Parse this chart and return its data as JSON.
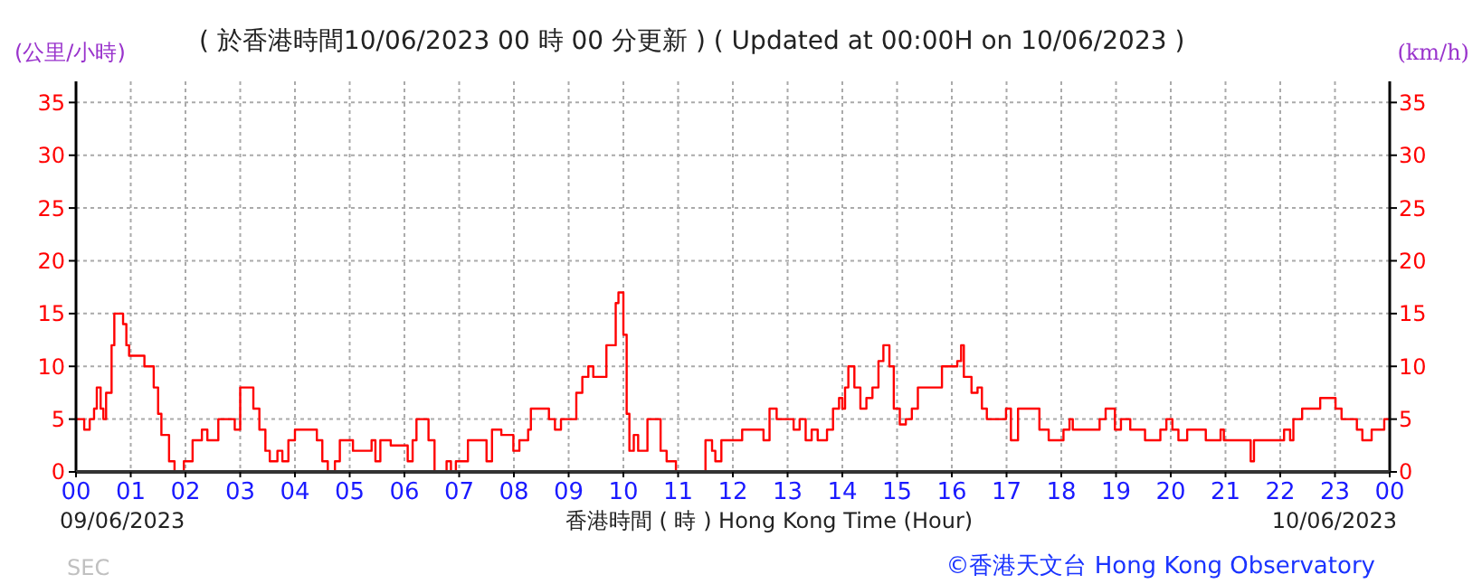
{
  "chart_data": {
    "type": "step",
    "title": "( 於香港時間10/06/2023 00 時 00 分更新 ) ( Updated at 00:00H on 10/06/2023 )",
    "xlabel": "香港時間 ( 時 ) Hong Kong Time (Hour)",
    "ylabel": "(公里/小時)",
    "y2label": "(km/h)",
    "annotations": [
      "09/06/2023",
      "10/06/2023",
      "SEC",
      "©香港天文台 Hong Kong Observatory"
    ],
    "xlim": [
      0,
      24
    ],
    "xticks": [
      {
        "value": 0,
        "label": "00"
      },
      {
        "value": 1,
        "label": "01"
      },
      {
        "value": 2,
        "label": "02"
      },
      {
        "value": 3,
        "label": "03"
      },
      {
        "value": 4,
        "label": "04"
      },
      {
        "value": 5,
        "label": "05"
      },
      {
        "value": 6,
        "label": "06"
      },
      {
        "value": 7,
        "label": "07"
      },
      {
        "value": 8,
        "label": "08"
      },
      {
        "value": 9,
        "label": "09"
      },
      {
        "value": 10,
        "label": "10"
      },
      {
        "value": 11,
        "label": "11"
      },
      {
        "value": 12,
        "label": "12"
      },
      {
        "value": 13,
        "label": "13"
      },
      {
        "value": 14,
        "label": "14"
      },
      {
        "value": 15,
        "label": "15"
      },
      {
        "value": 16,
        "label": "16"
      },
      {
        "value": 17,
        "label": "17"
      },
      {
        "value": 18,
        "label": "18"
      },
      {
        "value": 19,
        "label": "19"
      },
      {
        "value": 20,
        "label": "20"
      },
      {
        "value": 21,
        "label": "21"
      },
      {
        "value": 22,
        "label": "22"
      },
      {
        "value": 23,
        "label": "23"
      },
      {
        "value": 24,
        "label": "00"
      }
    ],
    "ylim": [
      0,
      37
    ],
    "yticks": [
      0,
      5,
      10,
      15,
      20,
      25,
      30,
      35
    ],
    "y2lim": [
      0,
      37
    ],
    "y2ticks": [
      0,
      5,
      10,
      15,
      20,
      25,
      30,
      35
    ],
    "grid": true,
    "series": [
      {
        "color": "#ff0000",
        "x": [
          0,
          0.15,
          0.25,
          0.33,
          0.38,
          0.45,
          0.5,
          0.55,
          0.65,
          0.7,
          0.86,
          0.92,
          0.97,
          1.25,
          1.3,
          1.42,
          1.5,
          1.56,
          1.7,
          1.8,
          1.97,
          2.13,
          2.3,
          2.4,
          2.6,
          2.9,
          3.0,
          3.24,
          3.35,
          3.46,
          3.54,
          3.68,
          3.77,
          3.88,
          4.0,
          4.4,
          4.5,
          4.6,
          4.73,
          4.82,
          5.06,
          5.4,
          5.47,
          5.56,
          5.75,
          6.06,
          6.15,
          6.22,
          6.44,
          6.55,
          6.77,
          6.85,
          6.94,
          7.16,
          7.5,
          7.6,
          7.77,
          7.99,
          8.1,
          8.26,
          8.31,
          8.64,
          8.75,
          8.86,
          9.14,
          9.25,
          9.36,
          9.45,
          9.69,
          9.86,
          9.91,
          10.0,
          10.06,
          10.11,
          10.19,
          10.27,
          10.36,
          10.44,
          10.6,
          10.68,
          10.79,
          10.96,
          11.5,
          11.62,
          11.68,
          11.79,
          12.17,
          12.56,
          12.67,
          12.8,
          13.11,
          13.22,
          13.33,
          13.44,
          13.55,
          13.72,
          13.83,
          13.94,
          14.0,
          14.05,
          14.11,
          14.22,
          14.33,
          14.44,
          14.55,
          14.66,
          14.75,
          14.86,
          14.94,
          15.05,
          15.16,
          15.27,
          15.38,
          15.82,
          16.1,
          16.17,
          16.22,
          16.36,
          16.47,
          16.55,
          16.64,
          16.99,
          17.08,
          17.21,
          17.6,
          17.77,
          18.04,
          18.15,
          18.21,
          18.7,
          18.81,
          18.98,
          19.09,
          19.26,
          19.53,
          19.81,
          19.92,
          20.03,
          20.14,
          20.3,
          20.64,
          20.91,
          20.97,
          21.46,
          21.52,
          22.07,
          22.18,
          22.24,
          22.4,
          22.73,
          23.01,
          23.12,
          23.4,
          23.5,
          23.67,
          23.9,
          23.97,
          24
        ],
        "values": [
          5,
          4,
          5,
          6,
          8,
          6,
          5,
          7.5,
          12,
          15,
          14,
          12,
          11,
          10,
          10,
          8,
          5.5,
          3.5,
          1,
          0,
          1,
          3,
          4,
          3,
          5,
          4,
          8,
          6,
          4,
          2,
          1,
          2,
          1,
          3,
          4,
          3,
          1,
          0,
          1,
          3,
          2,
          3,
          1,
          3,
          2.5,
          1,
          3,
          5,
          3,
          0,
          1,
          0,
          1,
          3,
          1,
          4,
          3.5,
          2,
          3,
          4,
          6,
          5,
          4,
          5,
          7.5,
          9,
          10,
          9,
          12,
          16,
          17,
          13,
          5.5,
          2,
          3.5,
          2,
          2,
          5,
          5,
          2,
          1,
          0,
          3,
          2,
          1,
          3,
          4,
          3,
          6,
          5,
          4,
          5,
          3,
          4,
          3,
          4,
          6,
          7,
          6,
          8,
          10,
          8,
          6,
          7,
          8,
          10.5,
          12,
          10,
          6,
          4.5,
          5,
          6,
          8,
          10,
          10.5,
          12,
          9,
          7.5,
          8,
          6,
          5,
          6,
          3,
          6,
          4,
          3,
          4,
          5,
          4,
          5,
          6,
          4,
          5,
          4,
          3,
          4,
          5,
          4,
          3,
          4,
          3,
          4,
          3,
          1,
          3,
          4,
          3,
          5,
          6,
          7,
          6,
          5,
          4,
          3,
          4,
          5,
          5,
          5
        ]
      }
    ]
  }
}
